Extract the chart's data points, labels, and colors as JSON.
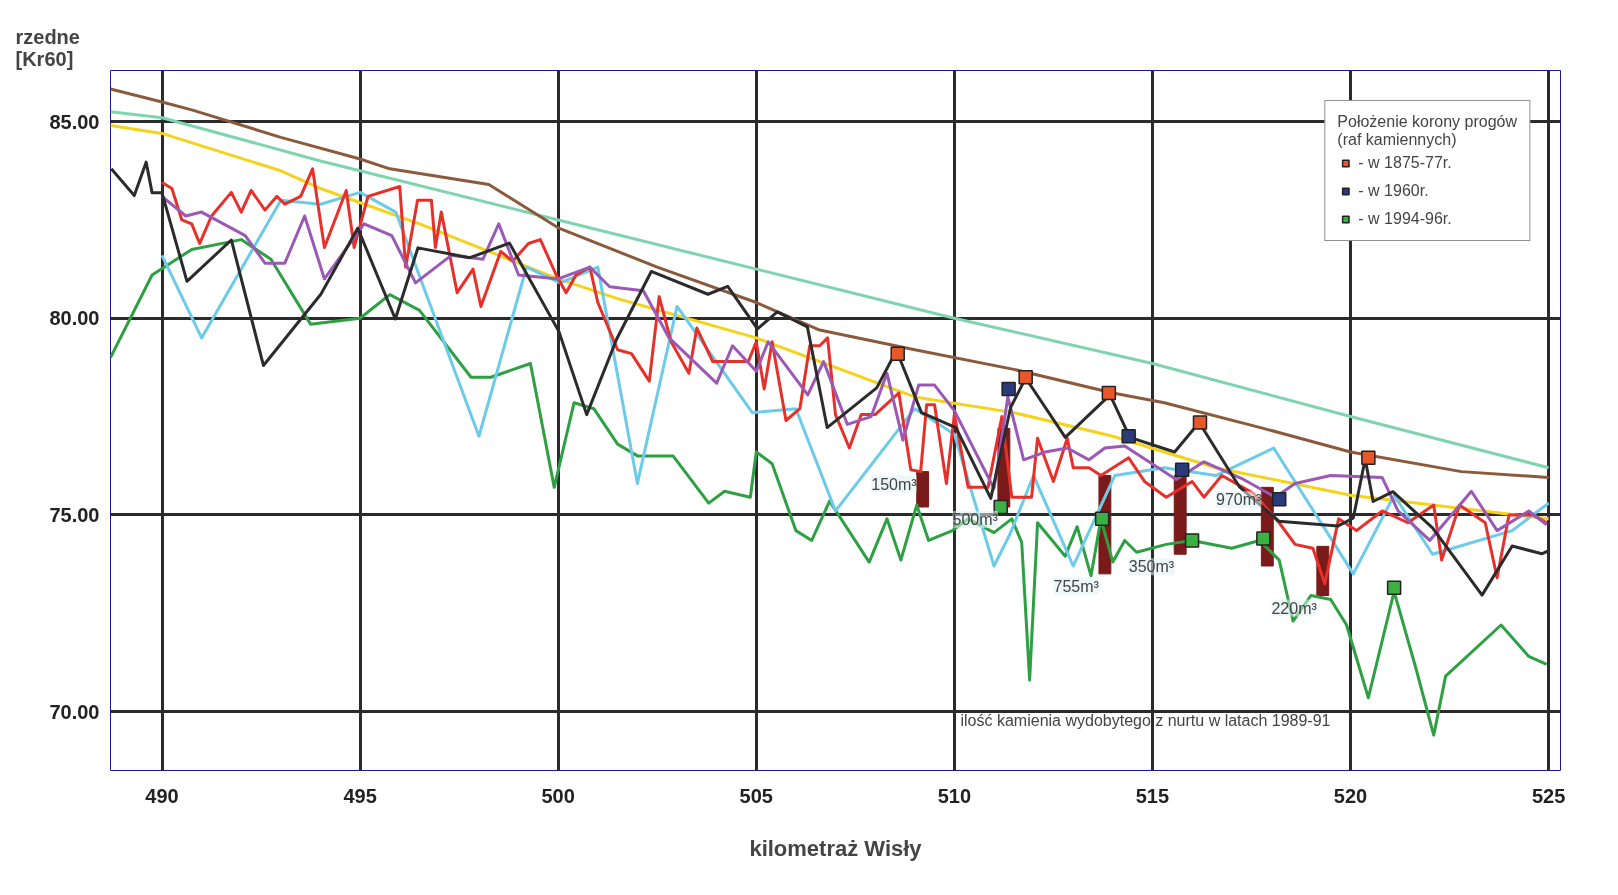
{
  "chart_data": {
    "type": "line",
    "xlabel": "kilometraż Wisły",
    "ylabel": "rzedne\n[Kr60]",
    "legend_title": "Położenie korony progów\n(raf kamiennych)",
    "legend": "top right",
    "grid": true,
    "xlim": [
      488.7,
      525.3
    ],
    "ylim": [
      68.5,
      86.3
    ],
    "xticks": [
      490,
      495,
      500,
      505,
      510,
      515,
      520,
      525
    ],
    "yticks": [
      {
        "value": 70,
        "label": "70.00"
      },
      {
        "value": 75,
        "label": "75.00"
      },
      {
        "value": 80,
        "label": "80.00"
      },
      {
        "value": 85,
        "label": "85.00"
      }
    ],
    "annotations": [
      {
        "text": "150m³",
        "x": 509.2,
        "y": 76.1
      },
      {
        "text": "500m³",
        "x": 511.25,
        "y": 75.2
      },
      {
        "text": "755m³",
        "x": 513.8,
        "y": 73.5
      },
      {
        "text": "350m³",
        "x": 515.7,
        "y": 74.0
      },
      {
        "text": "970m³",
        "x": 517.9,
        "y": 75.7
      },
      {
        "text": "220m³",
        "x": 519.3,
        "y": 72.95
      },
      "ilość kamienia wydobytego z nurtu w latach 1989-91"
    ],
    "series": [
      {
        "color": "#7fd4b0",
        "x": [
          488.7,
          490,
          494,
          500,
          505,
          510,
          515,
          520,
          525
        ],
        "values": [
          85.25,
          85.1,
          84.0,
          82.5,
          81.25,
          80.0,
          78.85,
          77.5,
          76.2
        ]
      },
      {
        "color": "#8b5a3c",
        "x": [
          488.7,
          490,
          490.75,
          493,
          495,
          495.75,
          498.25,
          500,
          502.5,
          505,
          506.6,
          509,
          511.5,
          514,
          515.3,
          517.8,
          520,
          522.8,
          525
        ],
        "values": [
          85.83,
          85.5,
          85.3,
          84.6,
          84.05,
          83.8,
          83.4,
          82.3,
          81.3,
          80.4,
          79.7,
          79.2,
          78.7,
          78.1,
          77.85,
          77.2,
          76.6,
          76.1,
          75.95
        ]
      },
      {
        "color": "#f5d31a",
        "x": [
          488.7,
          490,
          493,
          494,
          496.5,
          500,
          501.5,
          505,
          509,
          511.5,
          514,
          516.6,
          520,
          525
        ],
        "values": [
          84.9,
          84.7,
          83.75,
          83.3,
          82.4,
          81.0,
          80.5,
          79.5,
          78.0,
          77.6,
          77.0,
          76.2,
          75.5,
          74.9
        ]
      },
      {
        "color": "#2ea043",
        "x": [
          488.7,
          489.75,
          490.75,
          492.0,
          492.75,
          493.75,
          495.0,
          495.75,
          496.5,
          497.8,
          498.3,
          499.3,
          499.9,
          500.4,
          500.9,
          501.5,
          502.0,
          502.6,
          502.9,
          503.8,
          504.2,
          504.85,
          505.0,
          505.4,
          506.0,
          506.4,
          506.85,
          507.85,
          508.3,
          508.65,
          509.05,
          509.35,
          509.95,
          510.35,
          511.0,
          511.45,
          511.7,
          511.9,
          512.1,
          512.8,
          513.1,
          513.45,
          513.7,
          514.0,
          514.3,
          514.6,
          515.35,
          516.0,
          517.0,
          517.7,
          518.2,
          518.55,
          519.0,
          519.5,
          519.9,
          520.45,
          521.1,
          521.65,
          522.1,
          522.4,
          523.8,
          524.5,
          524.95
        ],
        "values": [
          79.0,
          81.1,
          81.75,
          82.0,
          81.5,
          79.85,
          80.0,
          80.6,
          80.2,
          78.5,
          78.5,
          78.85,
          75.7,
          77.85,
          77.7,
          76.8,
          76.5,
          76.5,
          76.5,
          75.3,
          75.6,
          75.45,
          76.6,
          76.3,
          74.6,
          74.35,
          75.35,
          73.8,
          74.9,
          73.85,
          75.25,
          74.35,
          74.6,
          74.9,
          74.55,
          74.9,
          74.3,
          70.8,
          74.8,
          73.95,
          74.7,
          73.45,
          74.9,
          73.8,
          74.35,
          74.05,
          74.25,
          74.35,
          74.15,
          74.35,
          73.85,
          72.3,
          72.95,
          72.85,
          72.2,
          70.35,
          73.05,
          71.1,
          69.4,
          70.9,
          72.2,
          71.4,
          71.2
        ]
      },
      {
        "color": "#6ccbe8",
        "x": [
          490,
          491,
          493,
          494,
          495,
          495.9,
          498.0,
          499.2,
          500.05,
          501.0,
          502.0,
          503.0,
          504.9,
          506.0,
          507.0,
          509.0,
          510.0,
          511.0,
          511.4,
          512.0,
          513.0,
          514.05,
          515.3,
          516.6,
          518.06,
          520.07,
          521.1,
          522.07,
          524.08,
          525
        ],
        "values": [
          81.6,
          79.5,
          83.0,
          82.9,
          83.2,
          82.7,
          77.0,
          81.3,
          80.9,
          81.3,
          75.8,
          80.3,
          77.6,
          77.7,
          75.1,
          77.7,
          77.05,
          73.7,
          74.5,
          76.0,
          73.7,
          76.0,
          76.2,
          76.0,
          76.7,
          73.5,
          75.5,
          74.0,
          74.6,
          75.3
        ]
      },
      {
        "color": "#e8302a",
        "x": [
          490,
          490.25,
          490.5,
          490.75,
          490.95,
          491.25,
          491.75,
          492.0,
          492.25,
          492.6,
          492.9,
          493.1,
          493.5,
          493.8,
          494.1,
          494.65,
          494.85,
          495.2,
          496.0,
          496.15,
          496.45,
          496.8,
          496.9,
          497.05,
          497.45,
          497.85,
          498.05,
          498.55,
          498.85,
          499.25,
          499.55,
          499.95,
          500.2,
          500.45,
          500.8,
          501.0,
          501.5,
          501.85,
          502.3,
          502.55,
          502.85,
          503.3,
          503.5,
          503.9,
          504.3,
          504.8,
          505.0,
          505.2,
          505.4,
          505.75,
          506.1,
          506.35,
          506.6,
          506.8,
          507.0,
          507.35,
          507.65,
          508.0,
          508.6,
          508.9,
          509.15,
          509.3,
          509.5,
          509.8,
          510.0,
          510.35,
          510.85,
          511.2,
          511.45,
          511.95,
          512.1,
          512.5,
          512.85,
          513.0,
          513.4,
          513.7,
          514.4,
          514.8,
          515.35,
          516.0,
          516.3,
          516.75,
          517.55,
          518.2,
          518.6,
          519.05,
          519.35,
          519.7,
          520.15,
          520.8,
          521.45,
          522.1,
          522.3,
          522.75,
          523.4,
          523.7,
          524.0,
          524.6,
          524.95
        ],
        "values": [
          83.45,
          83.3,
          82.5,
          82.4,
          81.9,
          82.6,
          83.2,
          82.7,
          83.25,
          82.75,
          83.1,
          82.9,
          83.1,
          83.8,
          81.8,
          83.25,
          81.8,
          83.1,
          83.35,
          81.3,
          83.0,
          83.0,
          81.8,
          82.7,
          80.65,
          81.25,
          80.3,
          81.7,
          81.45,
          81.9,
          82.0,
          81.1,
          80.65,
          81.1,
          81.3,
          80.4,
          79.2,
          79.1,
          78.4,
          80.55,
          79.4,
          78.6,
          79.75,
          78.9,
          78.9,
          78.9,
          79.4,
          78.2,
          79.4,
          77.4,
          77.7,
          79.3,
          79.3,
          79.5,
          77.55,
          76.7,
          77.55,
          77.55,
          78.1,
          76.15,
          76.1,
          77.8,
          77.8,
          75.8,
          77.55,
          75.7,
          75.7,
          77.5,
          75.45,
          75.45,
          76.95,
          75.85,
          76.95,
          76.2,
          76.2,
          76.0,
          76.45,
          75.85,
          75.45,
          75.85,
          75.45,
          76.0,
          75.55,
          74.8,
          74.25,
          74.15,
          73.25,
          74.9,
          74.6,
          75.1,
          74.8,
          75.25,
          73.85,
          75.25,
          74.8,
          73.4,
          75.0,
          75.0,
          74.8
        ]
      },
      {
        "color": "#9b59b6",
        "x": [
          490,
          490.6,
          491,
          492.1,
          492.6,
          493.1,
          493.6,
          494.1,
          495.1,
          495.8,
          496.4,
          497.3,
          498.1,
          498.5,
          499.0,
          500.0,
          500.8,
          501.3,
          502.15,
          502.8,
          504.0,
          504.4,
          505.0,
          505.3,
          506.3,
          506.7,
          507.3,
          507.9,
          508.3,
          508.7,
          509.1,
          509.5,
          510.0,
          511.0,
          511.35,
          511.75,
          512.3,
          512.85,
          513.4,
          513.8,
          514.3,
          515.6,
          516.3,
          517.3,
          518.1,
          518.6,
          519.5,
          520.8,
          521.2,
          522.0,
          523.05,
          523.7,
          524.5,
          524.95
        ],
        "values": [
          83.1,
          82.6,
          82.7,
          82.1,
          81.4,
          81.4,
          82.6,
          81.0,
          82.4,
          82.1,
          80.9,
          81.6,
          81.5,
          82.4,
          81.1,
          81.0,
          81.3,
          80.8,
          80.7,
          79.5,
          78.35,
          79.3,
          78.65,
          79.4,
          78.05,
          78.9,
          77.3,
          77.5,
          78.6,
          76.9,
          78.3,
          78.3,
          77.65,
          75.67,
          78.0,
          76.4,
          76.6,
          76.7,
          76.4,
          76.7,
          76.75,
          75.9,
          76.35,
          75.9,
          75.45,
          75.8,
          76.0,
          75.95,
          75.1,
          74.35,
          75.6,
          74.6,
          75.1,
          74.75
        ]
      },
      {
        "color": "#2b2b2b",
        "x": [
          488.72,
          489.3,
          489.6,
          489.75,
          490,
          490.63,
          491.75,
          492.56,
          494.01,
          494.94,
          495.89,
          496.46,
          497.77,
          498.77,
          500.02,
          500.72,
          501.48,
          502.35,
          503.78,
          504.28,
          505.03,
          505.53,
          506.29,
          506.79,
          508.04,
          508.54,
          509.17,
          510.04,
          510.92,
          511.42,
          511.8,
          512.8,
          513.93,
          514.43,
          515.56,
          516.18,
          517.19,
          518.19,
          519.69,
          520.07,
          520.37,
          520.57,
          521.07,
          522.07,
          523.32,
          524.08,
          524.83,
          525
        ],
        "values": [
          83.8,
          83.12,
          83.97,
          83.19,
          83.19,
          80.94,
          81.99,
          78.8,
          80.61,
          82.29,
          79.98,
          81.79,
          81.54,
          81.91,
          79.66,
          77.55,
          79.48,
          81.19,
          80.61,
          80.81,
          79.73,
          80.16,
          79.78,
          77.22,
          78.23,
          79.18,
          77.6,
          77.22,
          75.42,
          77.73,
          78.48,
          76.97,
          78.05,
          76.97,
          76.6,
          77.35,
          75.72,
          74.84,
          74.72,
          74.92,
          76.42,
          75.34,
          75.59,
          74.67,
          72.96,
          74.21,
          74.01,
          74.09
        ]
      },
      {
        "type": "bar",
        "color": "#7a1a1a",
        "x": [
          509.2,
          511.25,
          513.8,
          515.7,
          517.9,
          519.3
        ],
        "base": [
          75.2,
          75.2,
          73.5,
          74.0,
          73.7,
          72.95
        ],
        "values": [
          0.9,
          2.0,
          2.5,
          2.0,
          2.0,
          1.25
        ]
      },
      {
        "type": "scatter",
        "marker": "square",
        "name": "- w 1875-77r.",
        "color": "#e8572a",
        "x": [
          508.57,
          511.8,
          513.9,
          516.2,
          520.45
        ],
        "values": [
          79.1,
          78.5,
          78.1,
          77.35,
          76.45
        ]
      },
      {
        "type": "scatter",
        "marker": "square",
        "name": "- w 1960r.",
        "color": "#2b3a7a",
        "x": [
          511.37,
          514.4,
          515.75,
          518.2
        ],
        "values": [
          78.2,
          77.0,
          76.15,
          75.4
        ]
      },
      {
        "type": "scatter",
        "marker": "square",
        "name": "- w 1994-96r.",
        "color": "#3cb043",
        "x": [
          511.17,
          513.73,
          516.0,
          517.8,
          521.1
        ],
        "values": [
          75.2,
          74.9,
          74.35,
          74.4,
          73.15
        ]
      }
    ]
  }
}
